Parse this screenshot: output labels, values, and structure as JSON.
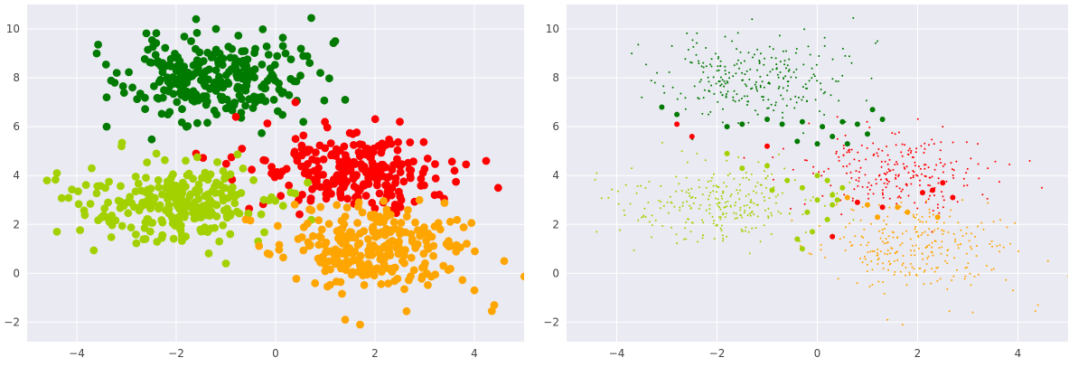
{
  "chart_data": [
    {
      "type": "scatter",
      "panel": "left",
      "title": "",
      "xlabel": "",
      "ylabel": "",
      "xlim": [
        -5.0,
        5.0
      ],
      "ylim": [
        -2.8,
        11.0
      ],
      "xticks": [
        -4,
        -2,
        0,
        2,
        4
      ],
      "yticks": [
        -2,
        0,
        2,
        4,
        6,
        8,
        10
      ],
      "xtick_labels": [
        "−4",
        "−2",
        "0",
        "2",
        "4"
      ],
      "ytick_labels": [
        "−2",
        "0",
        "2",
        "4",
        "6",
        "8",
        "10"
      ],
      "grid": true,
      "background": "#eaeaf2",
      "marker_size": "large",
      "series": [
        {
          "color": "#007a00",
          "center": [
            -1.3,
            7.9
          ],
          "spread": [
            0.85,
            0.85
          ],
          "count": 260,
          "seed": 11,
          "points": [
            [
              -3.6,
              9.0
            ],
            [
              -1.6,
              10.4
            ],
            [
              -1.2,
              10.0
            ],
            [
              1.2,
              9.5
            ],
            [
              0.2,
              9.0
            ],
            [
              -3.4,
              7.2
            ],
            [
              -3.4,
              6.0
            ],
            [
              1.4,
              7.1
            ],
            [
              0.9,
              8.2
            ]
          ]
        },
        {
          "color": "#ff0000",
          "center": [
            1.5,
            4.2
          ],
          "spread": [
            0.95,
            0.75
          ],
          "count": 240,
          "seed": 22,
          "points": [
            [
              -1.6,
              4.9
            ],
            [
              -0.8,
              6.4
            ],
            [
              2.5,
              6.2
            ],
            [
              3.6,
              4.2
            ],
            [
              3.2,
              3.2
            ],
            [
              0.4,
              7.0
            ]
          ]
        },
        {
          "color": "#a3d100",
          "center": [
            -2.0,
            2.8
          ],
          "spread": [
            0.95,
            0.8
          ],
          "count": 260,
          "seed": 33,
          "points": [
            [
              -4.6,
              3.8
            ],
            [
              -4.4,
              4.1
            ],
            [
              -4.4,
              1.7
            ],
            [
              -3.7,
              4.3
            ],
            [
              -1.0,
              0.4
            ],
            [
              -3.1,
              5.2
            ]
          ]
        },
        {
          "color": "#ffa500",
          "center": [
            1.9,
            1.0
          ],
          "spread": [
            0.95,
            0.8
          ],
          "count": 260,
          "seed": 44,
          "points": [
            [
              1.4,
              -1.9
            ],
            [
              1.7,
              -2.1
            ],
            [
              4.6,
              0.5
            ],
            [
              4.4,
              -1.3
            ],
            [
              4.0,
              -0.7
            ],
            [
              -0.6,
              2.2
            ]
          ]
        }
      ]
    },
    {
      "type": "scatter",
      "panel": "right",
      "title": "",
      "xlabel": "",
      "ylabel": "",
      "xlim": [
        -5.0,
        5.0
      ],
      "ylim": [
        -2.8,
        11.0
      ],
      "xticks": [
        -4,
        -2,
        0,
        2,
        4
      ],
      "yticks": [
        -2,
        0,
        2,
        4,
        6,
        8,
        10
      ],
      "xtick_labels": [
        "−4",
        "−2",
        "0",
        "2",
        "4"
      ],
      "ytick_labels": [
        "−2",
        "0",
        "2",
        "4",
        "6",
        "8",
        "10"
      ],
      "grid": true,
      "background": "#eaeaf2",
      "marker_size": "small",
      "series": [
        {
          "color": "#007a00",
          "center": [
            -1.3,
            7.9
          ],
          "spread": [
            0.85,
            0.85
          ],
          "count": 260,
          "seed": 11,
          "points": [
            [
              -1.3,
              10.4
            ],
            [
              -3.7,
              9.0
            ],
            [
              -2.9,
              9.3
            ],
            [
              -3.5,
              7.2
            ],
            [
              1.2,
              9.5
            ]
          ]
        },
        {
          "color": "#ff0000",
          "center": [
            1.5,
            4.2
          ],
          "spread": [
            0.95,
            0.75
          ],
          "count": 240,
          "seed": 22,
          "points": [
            [
              2.5,
              6.0
            ],
            [
              3.2,
              5.3
            ],
            [
              3.4,
              4.3
            ],
            [
              0.4,
              6.4
            ]
          ]
        },
        {
          "color": "#a3d100",
          "center": [
            -2.0,
            2.8
          ],
          "spread": [
            0.95,
            0.8
          ],
          "count": 260,
          "seed": 33,
          "points": [
            [
              -4.4,
              4.1
            ],
            [
              -4.4,
              1.7
            ],
            [
              -3.7,
              4.3
            ],
            [
              -2.7,
              5.0
            ]
          ]
        },
        {
          "color": "#ffa500",
          "center": [
            1.9,
            1.0
          ],
          "spread": [
            0.95,
            0.8
          ],
          "count": 260,
          "seed": 44,
          "points": [
            [
              1.4,
              -1.9
            ],
            [
              1.7,
              -2.1
            ],
            [
              4.6,
              0.5
            ],
            [
              4.4,
              -1.3
            ],
            [
              3.9,
              -0.7
            ],
            [
              3.1,
              -1.6
            ]
          ]
        }
      ],
      "support_points": [
        {
          "color": "#007a00",
          "points": [
            [
              -2.8,
              6.5
            ],
            [
              -3.1,
              6.8
            ],
            [
              -1.8,
              6.0
            ],
            [
              -1.5,
              6.1
            ],
            [
              -1.0,
              6.3
            ],
            [
              -0.7,
              6.1
            ],
            [
              -0.3,
              6.2
            ],
            [
              0.1,
              6.0
            ],
            [
              0.3,
              5.6
            ],
            [
              0.0,
              5.3
            ],
            [
              -0.4,
              5.4
            ],
            [
              0.5,
              6.2
            ],
            [
              0.8,
              6.1
            ],
            [
              1.1,
              6.7
            ],
            [
              1.3,
              6.3
            ],
            [
              1.0,
              5.7
            ],
            [
              0.6,
              5.3
            ]
          ]
        },
        {
          "color": "#ff0000",
          "points": [
            [
              -2.5,
              5.6
            ],
            [
              -2.8,
              6.1
            ],
            [
              -1.0,
              5.2
            ],
            [
              0.3,
              1.5
            ],
            [
              0.8,
              2.9
            ],
            [
              1.3,
              2.7
            ],
            [
              2.1,
              3.3
            ],
            [
              2.3,
              3.4
            ],
            [
              2.5,
              3.7
            ],
            [
              2.7,
              3.1
            ]
          ]
        },
        {
          "color": "#a3d100",
          "points": [
            [
              -1.8,
              4.9
            ],
            [
              -1.5,
              4.3
            ],
            [
              -1.0,
              4.4
            ],
            [
              -0.9,
              3.4
            ],
            [
              -0.6,
              3.8
            ],
            [
              -0.3,
              3.5
            ],
            [
              0.0,
              4.0
            ],
            [
              0.2,
              3.8
            ],
            [
              0.3,
              3.2
            ],
            [
              0.5,
              3.5
            ],
            [
              0.4,
              3.0
            ],
            [
              0.0,
              3.0
            ],
            [
              -0.2,
              2.5
            ],
            [
              0.2,
              2.2
            ],
            [
              -0.1,
              1.7
            ],
            [
              0.3,
              2.8
            ],
            [
              -0.4,
              1.4
            ],
            [
              -0.3,
              1.0
            ]
          ]
        },
        {
          "color": "#ffa500",
          "points": [
            [
              1.0,
              2.8
            ],
            [
              1.2,
              2.3
            ],
            [
              1.6,
              2.7
            ],
            [
              1.8,
              2.5
            ],
            [
              2.4,
              2.3
            ],
            [
              0.6,
              3.1
            ]
          ]
        }
      ]
    }
  ]
}
